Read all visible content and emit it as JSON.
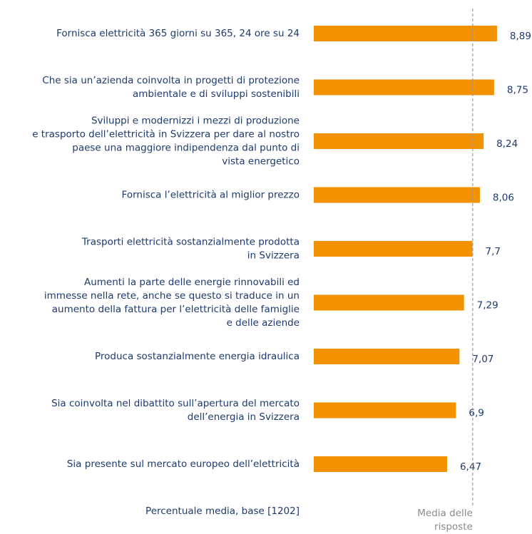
{
  "chart_data": {
    "type": "barh",
    "categories": [
      [
        "Fornisca elettricità 365 giorni su 365, 24 ore su 24"
      ],
      [
        "Che sia un’azienda coinvolta in progetti di protezione",
        "ambientale e di sviluppi sostenibili"
      ],
      [
        "Sviluppi e modernizzi i mezzi di produzione",
        "e trasporto dell’elettricità in Svizzera per dare al nostro",
        "paese una maggiore indipendenza dal punto di",
        "vista energetico"
      ],
      [
        "Fornisca l’elettricità al miglior prezzo"
      ],
      [
        "Trasporti elettricità sostanzialmente prodotta",
        "in Svizzera"
      ],
      [
        "Aumenti la parte delle energie rinnovabili ed",
        "immesse nella rete, anche se questo si traduce in un",
        "aumento della fattura per l’elettricità delle famiglie",
        "e delle aziende"
      ],
      [
        "Produca sostanzialmente energia idraulica"
      ],
      [
        "Sia coinvolta nel dibattito sull’apertura del mercato",
        "dell’energia in Svizzera"
      ],
      [
        "Sia presente sul mercato europeo dell’elettricità"
      ]
    ],
    "values": [
      8.89,
      8.75,
      8.24,
      8.06,
      7.7,
      7.29,
      7.07,
      6.9,
      6.47
    ],
    "value_labels": [
      "8,89",
      "8,75",
      "8,24",
      "8,06",
      "7,7",
      "7,29",
      "7,07",
      "6,9",
      "6,47"
    ],
    "color": "#f39200",
    "xlim": [
      0,
      10
    ],
    "reference_line": {
      "value": 7.71,
      "label": [
        "Media delle",
        "risposte"
      ]
    },
    "note": "Percentuale media, base [1202]"
  }
}
